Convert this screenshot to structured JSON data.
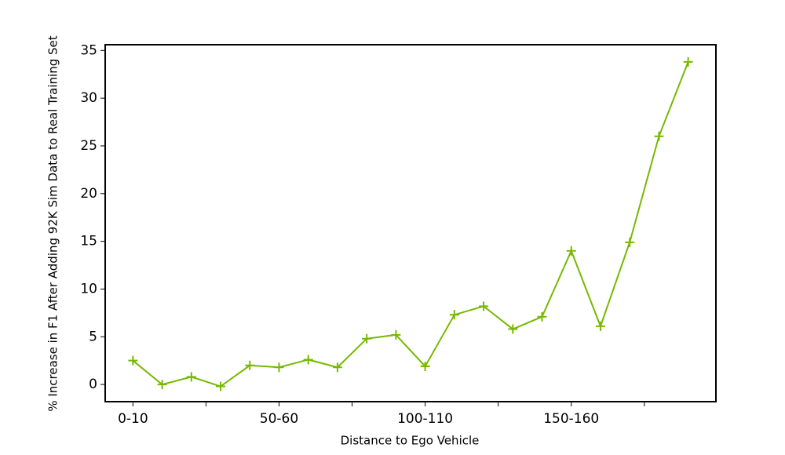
{
  "chart_data": {
    "type": "line",
    "x_label": "Distance to Ego Vehicle",
    "y_label": "% Increase in F1 After Adding 92K Sim Data to Real Training Set",
    "categories": [
      "0-10",
      null,
      null,
      null,
      null,
      "50-60",
      null,
      null,
      null,
      null,
      "100-110",
      null,
      null,
      null,
      null,
      "150-160",
      null,
      null,
      null,
      null
    ],
    "series": [
      {
        "name": null,
        "color": "#76b900",
        "values": [
          2.5,
          0,
          0.8,
          -0.2,
          2.0,
          1.8,
          2.6,
          1.8,
          4.8,
          5.2,
          1.9,
          7.3,
          8.2,
          5.8,
          7.1,
          14.0,
          6.1,
          14.9,
          26.0,
          33.8
        ]
      }
    ],
    "ylim": [
      -1.8,
      35.6
    ],
    "yticks": [
      0,
      5,
      10,
      15,
      20,
      25,
      30,
      35
    ]
  }
}
